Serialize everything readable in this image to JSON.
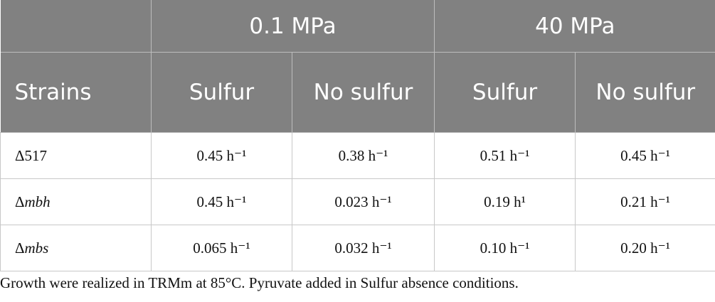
{
  "table": {
    "groups": [
      "0.1 MPa",
      "40 MPa"
    ],
    "columns": [
      "Strains",
      "Sulfur",
      "No sulfur",
      "Sulfur",
      "No sulfur"
    ],
    "rows": [
      {
        "strain": {
          "prefix": "Δ",
          "name": "517",
          "italic": false
        },
        "values": [
          "0.45 h⁻¹",
          "0.38 h⁻¹",
          "0.51 h⁻¹",
          "0.45 h⁻¹"
        ]
      },
      {
        "strain": {
          "prefix": "Δ",
          "name": "mbh",
          "italic": true
        },
        "values": [
          "0.45 h⁻¹",
          "0.023 h⁻¹",
          "0.19 h¹",
          "0.21 h⁻¹"
        ]
      },
      {
        "strain": {
          "prefix": "Δ",
          "name": "mbs",
          "italic": true
        },
        "values": [
          "0.065 h⁻¹",
          "0.032 h⁻¹",
          "0.10 h⁻¹",
          "0.20 h⁻¹"
        ]
      }
    ]
  },
  "caption": "Growth were realized in TRMm at 85°C. Pyruvate added in Sulfur absence conditions."
}
